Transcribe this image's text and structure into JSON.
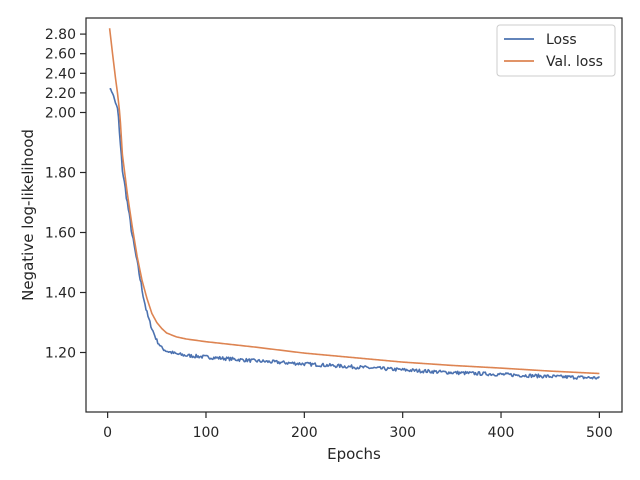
{
  "chart_data": {
    "type": "line",
    "title": "",
    "xlabel": "Epochs",
    "ylabel": "Negative log-likelihood",
    "xlim": [
      -22,
      523
    ],
    "ylim": [
      1.0,
      2.95
    ],
    "yscale": "piecewise: compressed above 2.00",
    "x_ticks": [
      0,
      100,
      200,
      300,
      400,
      500
    ],
    "x_tick_labels": [
      "0",
      "100",
      "200",
      "300",
      "400",
      "500"
    ],
    "y_ticks": [
      1.2,
      1.4,
      1.6,
      1.8,
      2.0,
      2.2,
      2.4,
      2.6,
      2.8
    ],
    "y_tick_labels": [
      "1.20",
      "1.40",
      "1.60",
      "1.80",
      "2.00",
      "2.20",
      "2.40",
      "2.60",
      "2.80"
    ],
    "grid": false,
    "legend": {
      "placement": "top-right",
      "entries": [
        "Loss",
        "Val. loss"
      ]
    },
    "series": [
      {
        "name": "Loss",
        "color": "#4c72b0",
        "noise": 0.006,
        "points": [
          [
            2,
            2.25
          ],
          [
            5,
            2.2
          ],
          [
            8,
            2.1
          ],
          [
            10,
            2.04
          ],
          [
            12,
            1.93
          ],
          [
            15,
            1.81
          ],
          [
            20,
            1.7
          ],
          [
            25,
            1.59
          ],
          [
            30,
            1.5
          ],
          [
            35,
            1.41
          ],
          [
            40,
            1.33
          ],
          [
            45,
            1.28
          ],
          [
            50,
            1.24
          ],
          [
            55,
            1.215
          ],
          [
            60,
            1.205
          ],
          [
            70,
            1.195
          ],
          [
            80,
            1.19
          ],
          [
            100,
            1.185
          ],
          [
            150,
            1.172
          ],
          [
            200,
            1.162
          ],
          [
            250,
            1.152
          ],
          [
            300,
            1.142
          ],
          [
            350,
            1.133
          ],
          [
            400,
            1.127
          ],
          [
            450,
            1.12
          ],
          [
            500,
            1.115
          ]
        ]
      },
      {
        "name": "Val. loss",
        "color": "#dd8452",
        "points": [
          [
            2,
            2.86
          ],
          [
            5,
            2.6
          ],
          [
            8,
            2.35
          ],
          [
            10,
            2.2
          ],
          [
            12,
            2.02
          ],
          [
            15,
            1.86
          ],
          [
            20,
            1.73
          ],
          [
            25,
            1.62
          ],
          [
            30,
            1.52
          ],
          [
            35,
            1.44
          ],
          [
            40,
            1.38
          ],
          [
            45,
            1.33
          ],
          [
            50,
            1.3
          ],
          [
            55,
            1.28
          ],
          [
            60,
            1.265
          ],
          [
            70,
            1.252
          ],
          [
            80,
            1.245
          ],
          [
            100,
            1.236
          ],
          [
            150,
            1.218
          ],
          [
            200,
            1.198
          ],
          [
            250,
            1.183
          ],
          [
            300,
            1.168
          ],
          [
            350,
            1.157
          ],
          [
            400,
            1.148
          ],
          [
            450,
            1.138
          ],
          [
            500,
            1.13
          ]
        ]
      }
    ]
  }
}
